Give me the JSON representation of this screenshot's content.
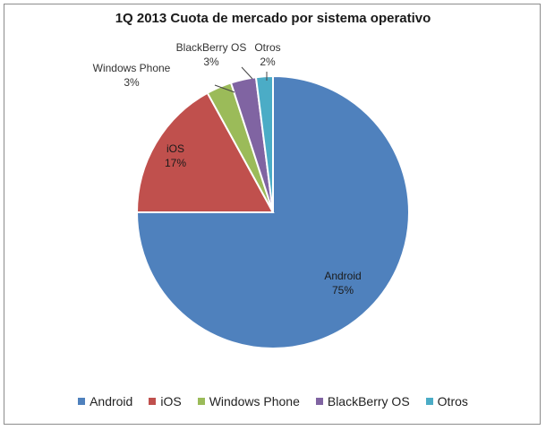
{
  "chart_data": {
    "type": "pie",
    "title": "1Q 2013 Cuota de mercado por sistema operativo",
    "categories": [
      "Android",
      "iOS",
      "Windows Phone",
      "BlackBerry OS",
      "Otros"
    ],
    "values": [
      75,
      17,
      3,
      3,
      2
    ],
    "data_labels": [
      {
        "name": "Android",
        "value": "75%"
      },
      {
        "name": "iOS",
        "value": "17%"
      },
      {
        "name": "Windows Phone",
        "value": "3%"
      },
      {
        "name": "BlackBerry OS",
        "value": "3%"
      },
      {
        "name": "Otros",
        "value": "2%"
      }
    ],
    "colors": [
      "#4f81bd",
      "#c0504d",
      "#9bbb59",
      "#8064a2",
      "#4bacc6"
    ],
    "legend_position": "bottom"
  }
}
